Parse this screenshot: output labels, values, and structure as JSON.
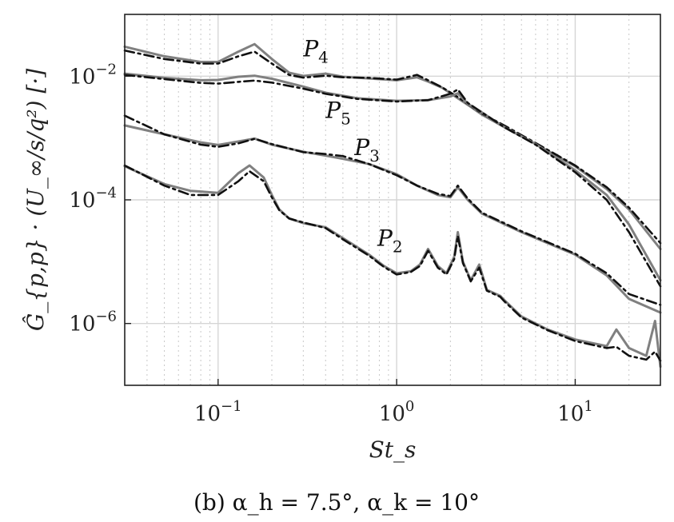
{
  "chart_data": {
    "type": "line",
    "title": "",
    "caption": "(b) α_h = 7.5°, α_k = 10°",
    "xlabel": "St_s",
    "ylabel": "Ĝ_{p,p} · (U_∞/s/q²) [·]",
    "xscale": "log",
    "yscale": "log",
    "xlim": [
      0.03,
      30
    ],
    "ylim": [
      1e-07,
      0.1
    ],
    "grid": true,
    "x_tick_labels": [
      {
        "value": 0.1,
        "base": "10",
        "exp": "−1"
      },
      {
        "value": 1,
        "base": "10",
        "exp": "0"
      },
      {
        "value": 10,
        "base": "10",
        "exp": "1"
      }
    ],
    "y_tick_labels": [
      {
        "value": 1e-06,
        "base": "10",
        "exp": "−6"
      },
      {
        "value": 0.0001,
        "base": "10",
        "exp": "−4"
      },
      {
        "value": 0.01,
        "base": "10",
        "exp": "−2"
      }
    ],
    "annotations": [
      {
        "main": "P",
        "sub": "4",
        "x": 0.3,
        "y": 0.021
      },
      {
        "main": "P",
        "sub": "5",
        "x": 0.4,
        "y": 0.0021
      },
      {
        "main": "P",
        "sub": "3",
        "x": 0.58,
        "y": 0.00053
      },
      {
        "main": "P",
        "sub": "2",
        "x": 0.78,
        "y": 1.8e-05
      }
    ],
    "series": [
      {
        "curve": "P4",
        "style": "solid",
        "color": "#808080",
        "x": [
          0.03,
          0.05,
          0.08,
          0.1,
          0.13,
          0.16,
          0.2,
          0.25,
          0.3,
          0.4,
          0.5,
          0.7,
          1.0,
          1.3,
          1.5,
          1.8,
          2.2,
          2.6,
          3.0,
          4.0,
          6.0,
          10,
          15,
          20,
          30
        ],
        "y": [
          0.03,
          0.021,
          0.017,
          0.017,
          0.025,
          0.033,
          0.019,
          0.0114,
          0.0101,
          0.011,
          0.0098,
          0.0092,
          0.0086,
          0.0096,
          0.0082,
          0.0065,
          0.0044,
          0.0032,
          0.0024,
          0.0015,
          0.0008,
          0.00035,
          0.00015,
          7e-05,
          1.6e-05
        ]
      },
      {
        "curve": "P4",
        "style": "dashdot",
        "color": "#111111",
        "x": [
          0.03,
          0.05,
          0.08,
          0.1,
          0.13,
          0.16,
          0.2,
          0.25,
          0.3,
          0.4,
          0.5,
          0.7,
          1.0,
          1.3,
          1.5,
          1.8,
          2.2,
          2.6,
          3.0,
          4.0,
          6.0,
          10,
          15,
          20,
          30
        ],
        "y": [
          0.026,
          0.019,
          0.016,
          0.016,
          0.021,
          0.025,
          0.016,
          0.0105,
          0.0095,
          0.0102,
          0.0096,
          0.0094,
          0.0088,
          0.0105,
          0.0086,
          0.0066,
          0.0046,
          0.0033,
          0.0025,
          0.0016,
          0.00083,
          0.00036,
          0.00016,
          7.5e-05,
          2e-05
        ]
      },
      {
        "curve": "P5",
        "style": "solid",
        "color": "#808080",
        "x": [
          0.03,
          0.05,
          0.08,
          0.1,
          0.13,
          0.16,
          0.2,
          0.3,
          0.4,
          0.6,
          1.0,
          1.5,
          2.0,
          2.2,
          2.5,
          3.0,
          4.0,
          6.0,
          10,
          15,
          20,
          30
        ],
        "y": [
          0.011,
          0.0094,
          0.0086,
          0.0087,
          0.0098,
          0.0102,
          0.0091,
          0.0068,
          0.0054,
          0.0044,
          0.004,
          0.0041,
          0.0047,
          0.0053,
          0.0036,
          0.0026,
          0.0015,
          0.0008,
          0.0003,
          0.00012,
          4e-05,
          5e-06
        ]
      },
      {
        "curve": "P5",
        "style": "dashdot",
        "color": "#111111",
        "x": [
          0.03,
          0.05,
          0.08,
          0.1,
          0.13,
          0.16,
          0.2,
          0.3,
          0.4,
          0.6,
          1.0,
          1.5,
          2.0,
          2.2,
          2.5,
          3.0,
          4.0,
          6.0,
          10,
          15,
          20,
          30
        ],
        "y": [
          0.0105,
          0.009,
          0.0078,
          0.0076,
          0.0081,
          0.0085,
          0.0079,
          0.0063,
          0.0052,
          0.0043,
          0.0039,
          0.0041,
          0.0052,
          0.0061,
          0.0037,
          0.0026,
          0.0015,
          0.00078,
          0.00028,
          0.0001,
          3e-05,
          4e-06
        ]
      },
      {
        "curve": "P3",
        "style": "solid",
        "color": "#808080",
        "x": [
          0.03,
          0.05,
          0.08,
          0.1,
          0.13,
          0.16,
          0.2,
          0.3,
          0.4,
          0.5,
          0.7,
          1.0,
          1.3,
          1.7,
          2.0,
          2.2,
          2.5,
          3.0,
          5.0,
          10,
          15,
          20,
          30
        ],
        "y": [
          0.0016,
          0.00115,
          0.00085,
          0.00077,
          0.00088,
          0.00098,
          0.00078,
          0.0006,
          0.00052,
          0.00046,
          0.00038,
          0.00026,
          0.00017,
          0.00012,
          0.00011,
          0.00016,
          0.0001,
          6e-05,
          3e-05,
          1.3e-05,
          6e-06,
          2.5e-06,
          1.5e-06
        ]
      },
      {
        "curve": "P3",
        "style": "dashdot",
        "color": "#111111",
        "x": [
          0.03,
          0.05,
          0.08,
          0.1,
          0.13,
          0.16,
          0.2,
          0.3,
          0.4,
          0.5,
          0.7,
          1.0,
          1.3,
          1.7,
          2.0,
          2.2,
          2.5,
          3.0,
          5.0,
          10,
          15,
          20,
          30
        ],
        "y": [
          0.0023,
          0.00115,
          0.00078,
          0.00072,
          0.00082,
          0.00097,
          0.0008,
          0.00059,
          0.00055,
          0.00051,
          0.00038,
          0.00025,
          0.00017,
          0.000125,
          0.000115,
          0.00017,
          0.000105,
          6.2e-05,
          3.1e-05,
          1.35e-05,
          6.5e-06,
          3e-06,
          2e-06
        ]
      },
      {
        "curve": "P2",
        "style": "solid",
        "color": "#808080",
        "x": [
          0.03,
          0.05,
          0.07,
          0.1,
          0.13,
          0.15,
          0.18,
          0.2,
          0.22,
          0.25,
          0.3,
          0.4,
          0.5,
          0.7,
          0.85,
          1.0,
          1.2,
          1.35,
          1.5,
          1.7,
          1.9,
          2.1,
          2.2,
          2.35,
          2.6,
          2.9,
          3.2,
          3.8,
          4.0,
          5.0,
          7.0,
          10,
          15,
          17,
          20,
          25,
          28,
          30
        ],
        "y": [
          0.00035,
          0.00018,
          0.00014,
          0.00013,
          0.00027,
          0.00036,
          0.00023,
          0.00012,
          7e-05,
          5e-05,
          4.2e-05,
          3.6e-05,
          2.4e-05,
          1.3e-05,
          8.5e-06,
          6.5e-06,
          7e-06,
          9e-06,
          1.6e-05,
          8.5e-06,
          6.5e-06,
          1.2e-05,
          3e-05,
          1e-05,
          5e-06,
          9e-06,
          3.5e-06,
          2.8e-06,
          2.4e-06,
          1.3e-06,
          8e-07,
          5.5e-07,
          4.3e-07,
          8e-07,
          4e-07,
          3e-07,
          1.1e-06,
          2e-07
        ]
      },
      {
        "curve": "P2",
        "style": "dashdot",
        "color": "#111111",
        "x": [
          0.03,
          0.05,
          0.07,
          0.1,
          0.13,
          0.15,
          0.18,
          0.2,
          0.22,
          0.25,
          0.3,
          0.4,
          0.5,
          0.7,
          0.85,
          1.0,
          1.2,
          1.35,
          1.5,
          1.7,
          1.9,
          2.1,
          2.2,
          2.35,
          2.6,
          2.9,
          3.2,
          3.8,
          4.0,
          5.0,
          7.0,
          10,
          15,
          17,
          20,
          25,
          28,
          30
        ],
        "y": [
          0.00036,
          0.00017,
          0.00012,
          0.00012,
          0.0002,
          0.00029,
          0.0002,
          0.00011,
          6.8e-05,
          5e-05,
          4.3e-05,
          3.5e-05,
          2.3e-05,
          1.25e-05,
          8.2e-06,
          6.2e-06,
          6.8e-06,
          8.5e-06,
          1.5e-05,
          8e-06,
          6.2e-06,
          1.1e-05,
          2.6e-05,
          9.5e-06,
          4.8e-06,
          8e-06,
          3.4e-06,
          2.7e-06,
          2.3e-06,
          1.25e-06,
          7.8e-07,
          5.2e-07,
          4e-07,
          4.2e-07,
          3e-07,
          2.6e-07,
          3.5e-07,
          2.5e-07
        ]
      }
    ]
  }
}
